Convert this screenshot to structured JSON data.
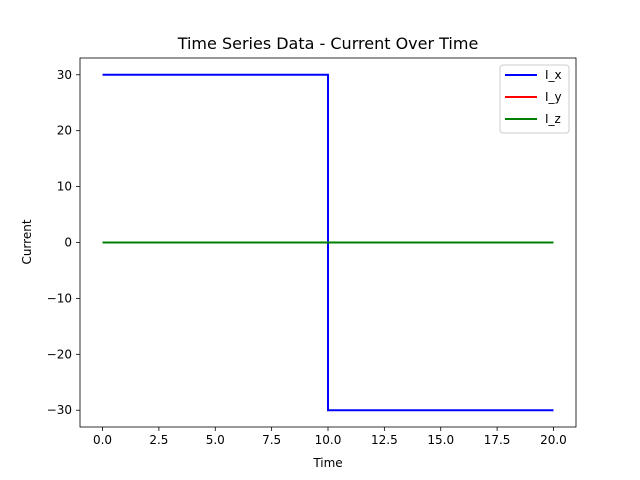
{
  "chart_data": {
    "type": "line",
    "title": "Time Series Data - Current Over Time",
    "xlabel": "Time",
    "ylabel": "Current",
    "xlim": [
      -1.0,
      21.0
    ],
    "ylim": [
      -33.0,
      33.0
    ],
    "xticks": [
      0.0,
      2.5,
      5.0,
      7.5,
      10.0,
      12.5,
      15.0,
      17.5,
      20.0
    ],
    "xtick_labels": [
      "0.0",
      "2.5",
      "5.0",
      "7.5",
      "10.0",
      "12.5",
      "15.0",
      "17.5",
      "20.0"
    ],
    "yticks": [
      -30,
      -20,
      -10,
      0,
      10,
      20,
      30
    ],
    "ytick_labels": [
      "−30",
      "−20",
      "−10",
      "0",
      "10",
      "20",
      "30"
    ],
    "grid": false,
    "legend_position": "upper right",
    "series": [
      {
        "name": "I_x",
        "color": "#0000ff",
        "x": [
          0,
          10,
          10,
          20
        ],
        "y": [
          30,
          30,
          -30,
          -30
        ]
      },
      {
        "name": "I_y",
        "color": "#ff0000",
        "x": [
          0,
          20
        ],
        "y": [
          0,
          0
        ]
      },
      {
        "name": "I_z",
        "color": "#008000",
        "x": [
          0,
          20
        ],
        "y": [
          0,
          0
        ]
      }
    ]
  }
}
